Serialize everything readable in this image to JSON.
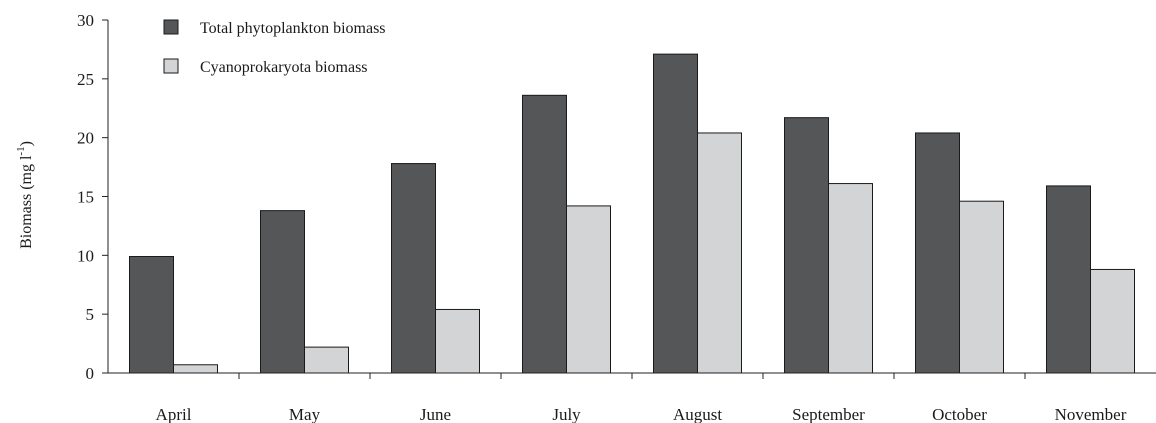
{
  "chart_data": {
    "type": "bar",
    "categories": [
      "April",
      "May",
      "June",
      "July",
      "August",
      "September",
      "October",
      "November"
    ],
    "series": [
      {
        "name": "Total phytoplankton biomass",
        "values": [
          9.9,
          13.8,
          17.8,
          23.6,
          27.1,
          21.7,
          20.4,
          15.9
        ],
        "color": "#555657"
      },
      {
        "name": "Cyanoprokaryota biomass",
        "values": [
          0.7,
          2.2,
          5.4,
          14.2,
          20.4,
          16.1,
          14.6,
          8.8
        ],
        "color": "#d3d4d6"
      }
    ],
    "title": "",
    "xlabel": "",
    "ylabel": "Biomass (mg l",
    "ylabel_superscript": "-1",
    "ylabel_suffix": ")",
    "ylim": [
      0,
      30
    ],
    "yticks": [
      0,
      5,
      10,
      15,
      20,
      25,
      30
    ],
    "grid": false,
    "legend_position": "top-left"
  }
}
